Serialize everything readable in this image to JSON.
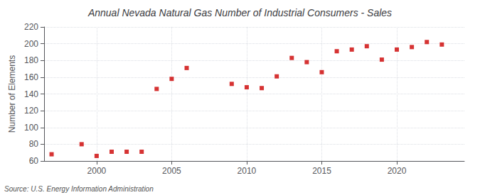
{
  "chart_data": {
    "type": "scatter",
    "title": "Annual Nevada Natural Gas Number of Industrial Consumers - Sales",
    "ylabel": "Number of Elements",
    "source": "Source: U.S. Energy Information Administration",
    "x": [
      1997,
      1999,
      2000,
      2001,
      2002,
      2003,
      2004,
      2005,
      2006,
      2009,
      2010,
      2011,
      2012,
      2013,
      2014,
      2015,
      2016,
      2017,
      2018,
      2019,
      2020,
      2021,
      2022,
      2023
    ],
    "values": [
      68,
      80,
      66,
      71,
      71,
      71,
      146,
      158,
      171,
      152,
      148,
      147,
      161,
      183,
      178,
      166,
      191,
      193,
      197,
      181,
      193,
      196,
      202,
      199
    ],
    "color": "#cc0000",
    "marker": "square",
    "xlim": [
      1996.5,
      2024.5
    ],
    "xticks": [
      2000,
      2005,
      2010,
      2015,
      2020
    ],
    "ylim": [
      60,
      220
    ],
    "yticks": [
      60,
      80,
      100,
      120,
      140,
      160,
      180,
      200,
      220
    ],
    "grid": true
  }
}
